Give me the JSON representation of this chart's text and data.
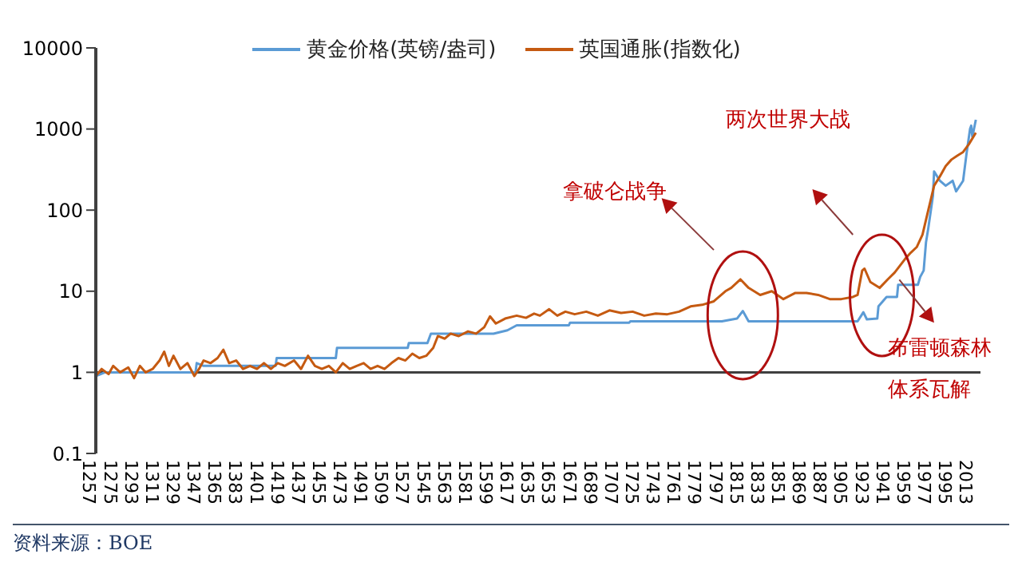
{
  "chart_data": {
    "type": "line",
    "log": "y",
    "legend": "top",
    "marker": "none",
    "line_style": "solid",
    "xlim": [
      1257,
      2020
    ],
    "xticks": [
      1257,
      1275,
      1293,
      1311,
      1329,
      1347,
      1365,
      1383,
      1401,
      1419,
      1437,
      1455,
      1473,
      1491,
      1509,
      1527,
      1545,
      1563,
      1581,
      1599,
      1617,
      1635,
      1653,
      1671,
      1689,
      1707,
      1725,
      1743,
      1761,
      1779,
      1797,
      1815,
      1833,
      1851,
      1869,
      1887,
      1905,
      1923,
      1941,
      1959,
      1977,
      1995,
      2013
    ],
    "ylim": [
      0.1,
      10000
    ],
    "yticks": [
      0.1,
      1,
      10,
      100,
      1000,
      10000
    ],
    "ref_lines": [
      {
        "axis": "y",
        "value": 1,
        "color": "#404040"
      }
    ],
    "annotations": [
      "拿破仑战争",
      "两次世界大战",
      "布雷顿森林",
      "体系瓦解",
      "资料来源：BOE"
    ],
    "series": [
      {
        "name": "黄金价格(英镑/盎司)",
        "color": "#5b9bd5",
        "x": [
          1257,
          1265,
          1300,
          1343,
          1344,
          1350,
          1412,
          1413,
          1464,
          1465,
          1526,
          1527,
          1543,
          1546,
          1600,
          1612,
          1620,
          1665,
          1666,
          1717,
          1718,
          1797,
          1810,
          1815,
          1820,
          1914,
          1919,
          1922,
          1931,
          1932,
          1939,
          1948,
          1949,
          1966,
          1968,
          1971,
          1973,
          1975,
          1979,
          1980,
          1985,
          1990,
          1996,
          1999,
          2005,
          2008,
          2011,
          2012,
          2013,
          2016
        ],
        "values": [
          0.9,
          1.0,
          1.0,
          1.0,
          1.3,
          1.2,
          1.2,
          1.5,
          1.5,
          2.0,
          2.0,
          2.3,
          2.3,
          3.0,
          3.0,
          3.3,
          3.8,
          3.8,
          4.1,
          4.1,
          4.25,
          4.25,
          4.6,
          5.7,
          4.25,
          4.25,
          5.5,
          4.5,
          4.6,
          6.5,
          8.5,
          8.5,
          12,
          12,
          15,
          18,
          40,
          60,
          150,
          300,
          230,
          200,
          230,
          170,
          230,
          500,
          1000,
          1100,
          800,
          1300
        ]
      },
      {
        "name": "英国通胀(指数化)",
        "color": "#c55a11",
        "x": [
          1257,
          1262,
          1268,
          1272,
          1278,
          1285,
          1290,
          1295,
          1300,
          1306,
          1312,
          1316,
          1320,
          1324,
          1330,
          1336,
          1342,
          1346,
          1350,
          1356,
          1362,
          1367,
          1372,
          1378,
          1384,
          1390,
          1396,
          1402,
          1408,
          1414,
          1420,
          1428,
          1434,
          1440,
          1446,
          1452,
          1458,
          1464,
          1470,
          1476,
          1482,
          1488,
          1494,
          1500,
          1506,
          1512,
          1518,
          1524,
          1530,
          1536,
          1542,
          1548,
          1552,
          1558,
          1563,
          1570,
          1578,
          1585,
          1592,
          1597,
          1602,
          1610,
          1620,
          1628,
          1635,
          1640,
          1648,
          1655,
          1662,
          1670,
          1680,
          1690,
          1700,
          1710,
          1720,
          1730,
          1740,
          1750,
          1760,
          1770,
          1780,
          1790,
          1800,
          1805,
          1813,
          1820,
          1830,
          1840,
          1850,
          1860,
          1870,
          1880,
          1890,
          1900,
          1910,
          1914,
          1918,
          1920,
          1925,
          1933,
          1940,
          1946,
          1955,
          1960,
          1965,
          1970,
          1975,
          1980,
          1985,
          1990,
          1995,
          2000,
          2005,
          2010,
          2016
        ],
        "values": [
          0.9,
          1.1,
          0.95,
          1.2,
          1.0,
          1.15,
          0.85,
          1.2,
          1.0,
          1.1,
          1.4,
          1.8,
          1.2,
          1.6,
          1.1,
          1.3,
          0.9,
          1.1,
          1.4,
          1.3,
          1.5,
          1.9,
          1.3,
          1.4,
          1.1,
          1.2,
          1.1,
          1.3,
          1.1,
          1.3,
          1.2,
          1.4,
          1.1,
          1.6,
          1.2,
          1.1,
          1.2,
          1.0,
          1.3,
          1.1,
          1.2,
          1.3,
          1.1,
          1.2,
          1.1,
          1.3,
          1.5,
          1.4,
          1.7,
          1.5,
          1.6,
          2.0,
          2.8,
          2.6,
          3.0,
          2.8,
          3.2,
          3.0,
          3.6,
          4.9,
          4.0,
          4.6,
          5.0,
          4.7,
          5.3,
          5.0,
          6.0,
          5.0,
          5.6,
          5.2,
          5.6,
          5.0,
          5.8,
          5.4,
          5.6,
          5.0,
          5.3,
          5.2,
          5.6,
          6.5,
          6.8,
          7.5,
          10,
          11,
          14,
          11,
          9,
          10,
          8,
          9.5,
          9.5,
          9,
          8,
          8,
          8.5,
          9,
          18,
          19,
          13,
          11,
          14,
          17,
          25,
          30,
          35,
          50,
          100,
          200,
          260,
          350,
          420,
          470,
          520,
          650,
          900
        ]
      }
    ]
  }
}
